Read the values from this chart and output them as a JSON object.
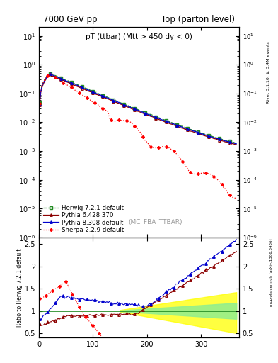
{
  "title_left": "7000 GeV pp",
  "title_right": "Top (parton level)",
  "main_title_display": "pT (ttbar) (Mtt > 450 dy < 0)",
  "watermark": "(MC_FBA_TTBAR)",
  "right_label_top": "Rivet 3.1.10; ≥ 3.4M events",
  "right_label_bot": "mcplots.cern.ch [arXiv:1306.3436]",
  "ylabel_ratio": "Ratio to Herwig 7.2.1 default",
  "xlim": [
    0,
    370
  ],
  "ylim_main": [
    1e-06,
    20
  ],
  "ylim_ratio": [
    0.4,
    2.65
  ],
  "ratio_yticks": [
    0.5,
    1.0,
    1.5,
    2.0,
    2.5
  ],
  "ratio_yticklabels": [
    "0.5",
    "1",
    "1.5",
    "2",
    "2.5"
  ],
  "xticks": [
    0,
    100,
    200,
    300
  ],
  "xticklabels": [
    "0",
    "100",
    "200",
    "300"
  ],
  "legend_labels": [
    "Herwig 7.2.1 default",
    "Pythia 6.428 370",
    "Pythia 8.308 default",
    "Sherpa 2.2.9 default"
  ],
  "legend_colors": [
    "#228B22",
    "#8B0000",
    "#0000CD",
    "#FF0000"
  ],
  "legend_ls": [
    "--",
    "-",
    "-",
    ":"
  ],
  "legend_markers": [
    "s",
    "^",
    "^",
    "D"
  ],
  "legend_mfc": [
    "none",
    "none",
    "#0000CD",
    "#FF0000"
  ],
  "background_color": "#ffffff",
  "fig_width": 3.93,
  "fig_height": 5.12,
  "dpi": 100
}
